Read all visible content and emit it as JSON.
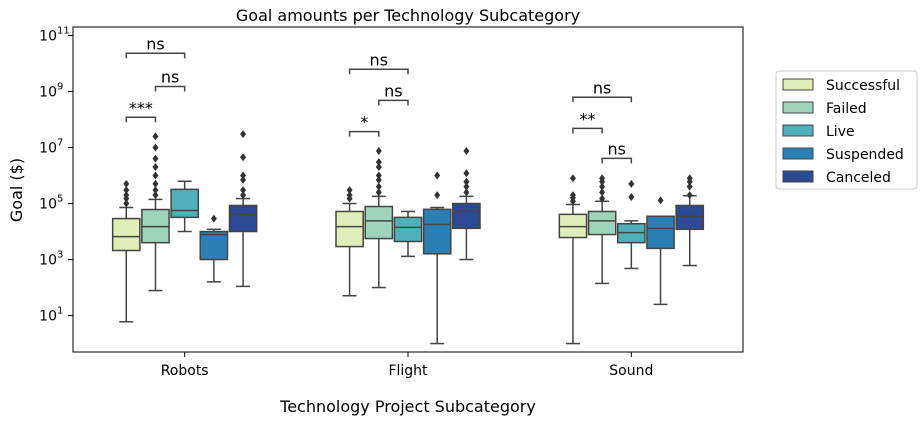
{
  "chart_data": {
    "type": "box",
    "title": "Goal amounts per Technology Subcategory",
    "xlabel": "Technology Project Subcategory",
    "ylabel": "Goal ($)",
    "yscale": "log",
    "ylim": [
      0.5,
      200000000000.0
    ],
    "yticks": [
      {
        "v": 10,
        "label": "10",
        "exp": "1"
      },
      {
        "v": 1000,
        "label": "10",
        "exp": "3"
      },
      {
        "v": 100000,
        "label": "10",
        "exp": "5"
      },
      {
        "v": 10000000,
        "label": "10",
        "exp": "7"
      },
      {
        "v": 1000000000,
        "label": "10",
        "exp": "9"
      },
      {
        "v": 100000000000,
        "label": "10",
        "exp": "11"
      }
    ],
    "categories": [
      "Robots",
      "Flight",
      "Sound"
    ],
    "legend": {
      "placement": "right outside",
      "entries": [
        "Successful",
        "Failed",
        "Live",
        "Suspended",
        "Canceled"
      ]
    },
    "colors": [
      "#e0eeb8",
      "#9ed4ba",
      "#4eb1ba",
      "#2a80b5",
      "#2c4993"
    ],
    "series": [
      {
        "name": "Successful",
        "boxes": [
          {
            "whislo": 6,
            "q1": 2100,
            "med": 6600,
            "q3": 29000,
            "whishi": 72000,
            "fliers": [
              100000,
              150000,
              200000,
              300000,
              500000
            ]
          },
          {
            "whislo": 51,
            "q1": 2900,
            "med": 15000,
            "q3": 52000,
            "whishi": 100000,
            "fliers": [
              150000,
              200000,
              300000
            ]
          },
          {
            "whislo": 1,
            "q1": 6100,
            "med": 15000,
            "q3": 41000,
            "whishi": 92000,
            "fliers": [
              120000,
              160000,
              200000,
              800000
            ]
          }
        ]
      },
      {
        "name": "Failed",
        "boxes": [
          {
            "whislo": 78,
            "q1": 4000,
            "med": 15000,
            "q3": 61000,
            "whishi": 140000,
            "fliers": [
              200000,
              300000,
              500000,
              1000000,
              2000000,
              4000000,
              10000000,
              25000000
            ]
          },
          {
            "whislo": 100,
            "q1": 5600,
            "med": 24000,
            "q3": 78000,
            "whishi": 180000,
            "fliers": [
              250000,
              400000,
              700000,
              1000000,
              2000000,
              3000000,
              7500000
            ]
          },
          {
            "whislo": 140,
            "q1": 7800,
            "med": 24000,
            "q3": 52000,
            "whishi": 120000,
            "fliers": [
              150000,
              250000,
              400000,
              600000,
              800000
            ]
          }
        ]
      },
      {
        "name": "Live",
        "boxes": [
          {
            "whislo": 10000,
            "q1": 32000,
            "med": 56000,
            "q3": 320000,
            "whishi": 620000,
            "fliers": []
          },
          {
            "whislo": 1300,
            "q1": 4400,
            "med": 14000,
            "q3": 32000,
            "whishi": 52000,
            "fliers": []
          },
          {
            "whislo": 480,
            "q1": 4000,
            "med": 9100,
            "q3": 19000,
            "whishi": 24000,
            "fliers": [
              170000,
              500000
            ]
          }
        ]
      },
      {
        "name": "Suspended",
        "boxes": [
          {
            "whislo": 160,
            "q1": 1000,
            "med": 7800,
            "q3": 10000,
            "whishi": 12000,
            "fliers": [
              29000
            ]
          },
          {
            "whislo": 1,
            "q1": 1600,
            "med": 18000,
            "q3": 62000,
            "whishi": 72000,
            "fliers": [
              200000,
              1000000
            ]
          },
          {
            "whislo": 25,
            "q1": 2500,
            "med": 13000,
            "q3": 35000,
            "whishi": 35000,
            "fliers": [
              130000
            ]
          }
        ]
      },
      {
        "name": "Canceled",
        "boxes": [
          {
            "whislo": 110,
            "q1": 10000,
            "med": 41000,
            "q3": 85000,
            "whishi": 150000,
            "fliers": [
              200000,
              300000,
              700000,
              1000000,
              4500000,
              30000000
            ]
          },
          {
            "whislo": 1000,
            "q1": 13000,
            "med": 52000,
            "q3": 100000,
            "whishi": 180000,
            "fliers": [
              250000,
              400000,
              600000,
              1200000,
              7500000
            ]
          },
          {
            "whislo": 610,
            "q1": 12000,
            "med": 35000,
            "q3": 85000,
            "whishi": 190000,
            "fliers": [
              200000,
              400000,
              600000,
              800000
            ]
          }
        ]
      }
    ],
    "annotations": [
      {
        "category": "Robots",
        "from": "Successful",
        "to": "Failed",
        "label": "***",
        "y": 120000000.0
      },
      {
        "category": "Robots",
        "from": "Failed",
        "to": "Live",
        "label": "ns",
        "y": 1500000000.0
      },
      {
        "category": "Robots",
        "from": "Successful",
        "to": "Live",
        "label": "ns",
        "y": 23000000000.0
      },
      {
        "category": "Flight",
        "from": "Successful",
        "to": "Failed",
        "label": "*",
        "y": 37000000.0
      },
      {
        "category": "Flight",
        "from": "Failed",
        "to": "Live",
        "label": "ns",
        "y": 480000000.0
      },
      {
        "category": "Flight",
        "from": "Successful",
        "to": "Live",
        "label": "ns",
        "y": 6200000000.0
      },
      {
        "category": "Sound",
        "from": "Successful",
        "to": "Failed",
        "label": "**",
        "y": 48000000.0
      },
      {
        "category": "Sound",
        "from": "Failed",
        "to": "Live",
        "label": "ns",
        "y": 4100000.0
      },
      {
        "category": "Sound",
        "from": "Successful",
        "to": "Live",
        "label": "ns",
        "y": 620000000.0
      }
    ]
  }
}
